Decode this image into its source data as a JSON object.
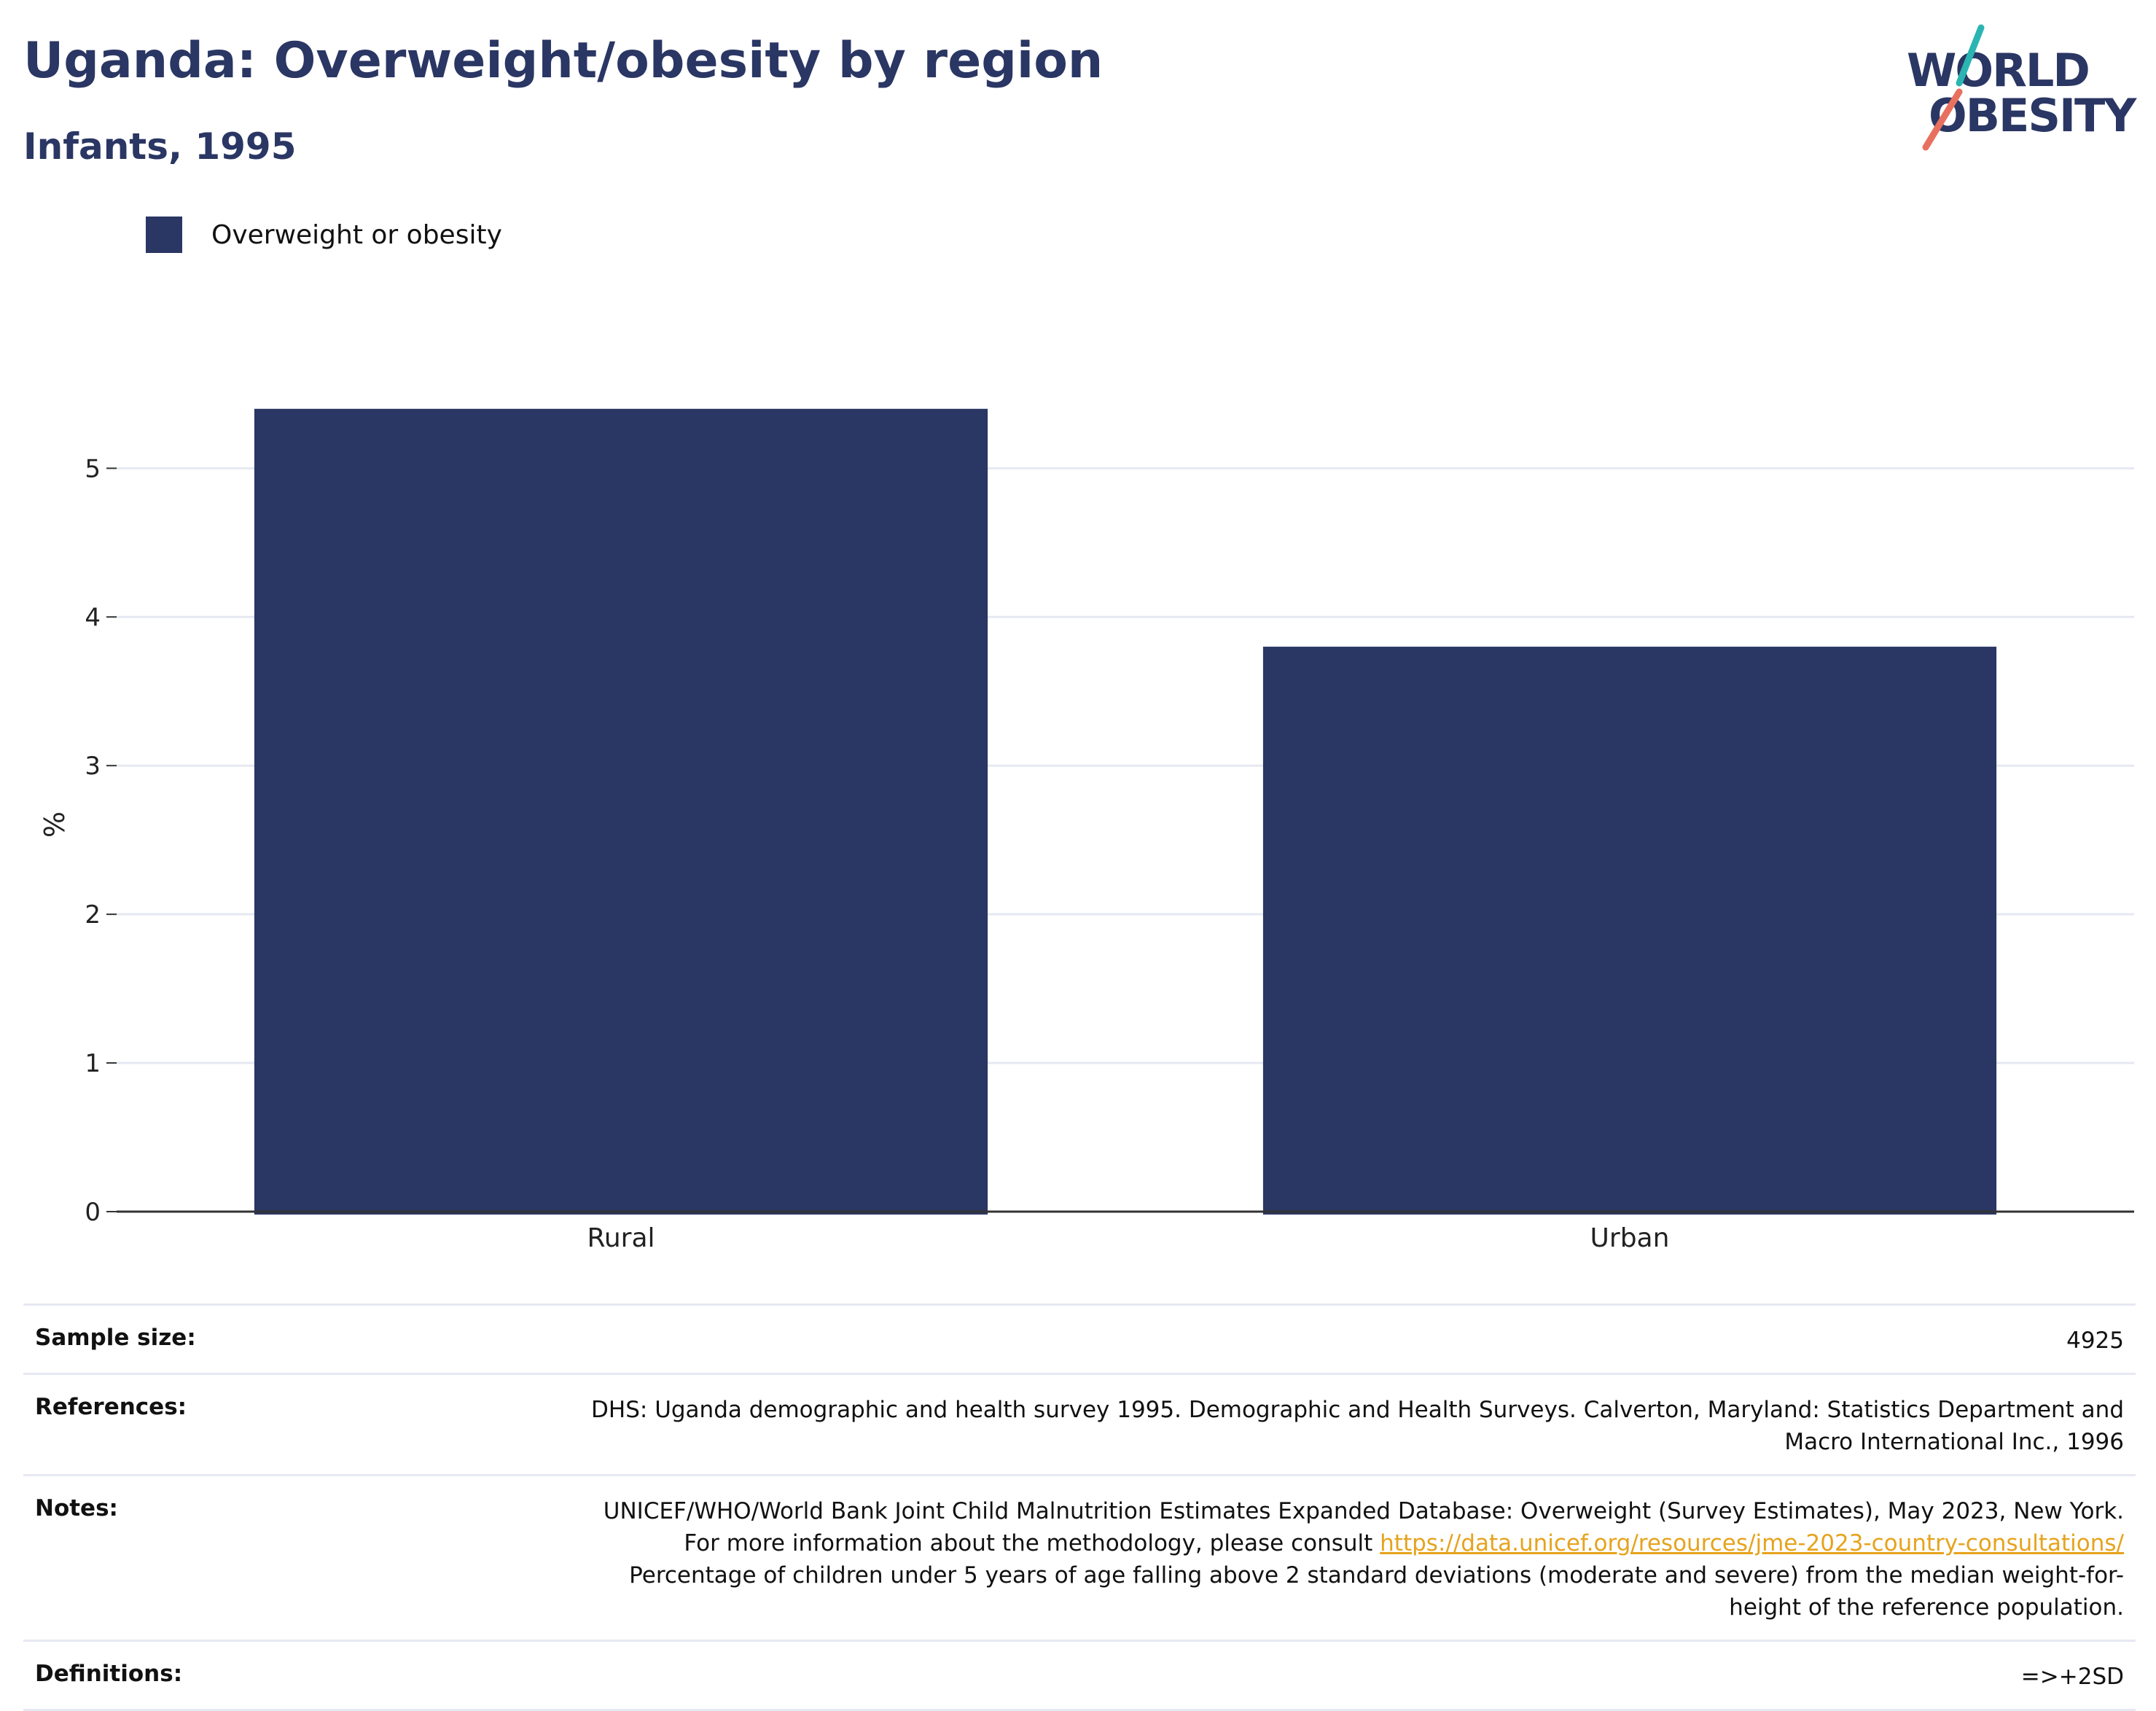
{
  "header": {
    "title": "Uganda: Overweight/obesity by region",
    "subtitle": "Infants, 1995"
  },
  "logo": {
    "line1": "WORLD",
    "line2": "OBESITY",
    "accent_teal": "#2ab5b3",
    "accent_coral": "#e8705f",
    "text_color": "#2a3663"
  },
  "colors": {
    "bar": "#2a3663",
    "title": "#2a3663",
    "link": "#e6a31c",
    "gridline": "#e6e9f2",
    "axis": "#333333"
  },
  "chart_data": {
    "type": "bar",
    "categories": [
      "Rural",
      "Urban"
    ],
    "series": [
      {
        "name": "Overweight or obesity",
        "values": [
          5.4,
          3.8
        ],
        "color": "#2a3663"
      }
    ],
    "ylabel": "%",
    "xlabel": "",
    "ylim": [
      0,
      5.6
    ],
    "yticks": [
      0,
      1,
      2,
      3,
      4,
      5
    ],
    "grid": true,
    "legend": "top-left"
  },
  "info": {
    "sample_size_label": "Sample size:",
    "sample_size_value": "4925",
    "references_label": "References:",
    "references_value": "DHS: Uganda demographic and health survey 1995. Demographic and Health Surveys. Calverton, Maryland: Statistics Department and Macro International Inc., 1996",
    "notes_label": "Notes:",
    "notes_text_1": "UNICEF/WHO/World Bank Joint Child Malnutrition Estimates Expanded Database: Overweight (Survey Estimates), May 2023, New York. For more information about the methodology, please consult ",
    "notes_link": "https://data.unicef.org/resources/jme-2023-country-consultations/",
    "notes_text_2": "Percentage of children under 5 years of age falling above 2 standard deviations (moderate and severe) from the median weight-for-height of the reference population.",
    "definitions_label": "Definitions:",
    "definitions_value": "=>+2SD"
  }
}
